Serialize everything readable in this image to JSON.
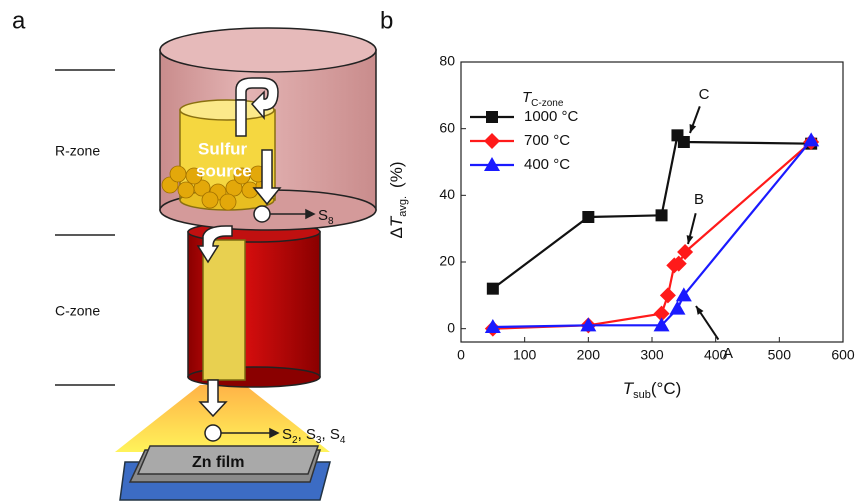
{
  "panel_labels": [
    "a",
    "b"
  ],
  "diagram": {
    "zones": [
      "R-zone",
      "C-zone"
    ],
    "source": [
      "Sulfur",
      "source"
    ],
    "s8": [
      "S",
      "8"
    ],
    "products": [
      "S",
      "2",
      ", S",
      "3",
      ", S",
      "4"
    ],
    "film": "Zn film"
  },
  "chart_data": {
    "type": "line",
    "ylabel": [
      "Δ",
      "T",
      "avg.",
      "(%)"
    ],
    "xlabel": [
      "T",
      "sub",
      "(°C)"
    ],
    "legend_title": [
      "T",
      "C-zone"
    ],
    "legend": "upper left",
    "annotations": [
      "C",
      "B",
      "A"
    ],
    "xlim": [
      0,
      600
    ],
    "xticks": [
      0,
      100,
      200,
      300,
      400,
      500,
      600
    ],
    "ylim": [
      -4,
      80
    ],
    "yticks": [
      0,
      20,
      40,
      60,
      80
    ],
    "grid": false,
    "series": [
      {
        "name": "1000 °C",
        "color": "#111111",
        "marker": "square",
        "x": [
          50,
          200,
          315,
          340,
          350,
          550
        ],
        "values": [
          12,
          33.5,
          34,
          58,
          56,
          55.5
        ]
      },
      {
        "name": "700 °C",
        "color": "#ff1a1a",
        "marker": "diamond",
        "x": [
          50,
          200,
          315,
          325,
          335,
          342,
          352,
          550
        ],
        "values": [
          0,
          1,
          4.5,
          10,
          19,
          19.5,
          23,
          56
        ]
      },
      {
        "name": "400 °C",
        "color": "#1a1aff",
        "marker": "triangle",
        "x": [
          50,
          200,
          315,
          340,
          350,
          550
        ],
        "values": [
          0.5,
          1,
          1,
          6,
          10,
          56.5
        ]
      }
    ]
  }
}
